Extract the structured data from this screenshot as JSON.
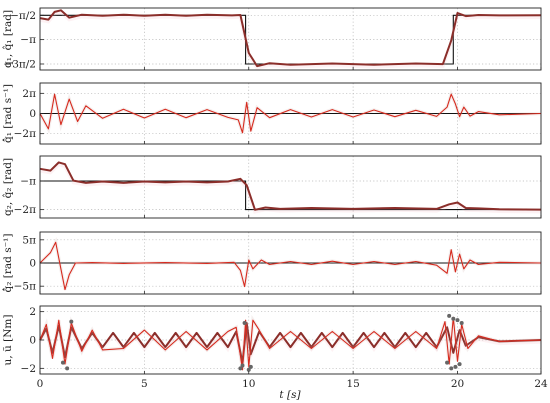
{
  "colors": {
    "reference": "#111111",
    "filtered": "#8b2e2a",
    "measured": "#d62a1e",
    "noise": "#c9a9a0",
    "marker": "#666666",
    "pink": "#f2b8c0",
    "cyan": "#9fd8ec"
  },
  "xlabel": "t [s]",
  "x_ticks": [
    "0",
    "5",
    "10",
    "15",
    "20",
    "24"
  ],
  "chart_data": [
    {
      "type": "line",
      "ylabel": "q₁, q̂₁ [rad]",
      "y_ticks": [
        "−π/2",
        "−π",
        "−3π/2"
      ],
      "ylim": [
        -5.1,
        -1.1
      ],
      "xlim": [
        0,
        24
      ],
      "grid": true,
      "series": [
        {
          "role": "reference",
          "points": [
            [
              0,
              -1.571
            ],
            [
              9.85,
              -1.571
            ],
            [
              9.85,
              -4.712
            ],
            [
              19.8,
              -4.712
            ],
            [
              19.8,
              -1.571
            ],
            [
              24,
              -1.571
            ]
          ]
        },
        {
          "role": "filtered",
          "points": [
            [
              0,
              -1.75
            ],
            [
              0.4,
              -1.85
            ],
            [
              0.7,
              -1.35
            ],
            [
              1.0,
              -1.25
            ],
            [
              1.4,
              -1.72
            ],
            [
              2.0,
              -1.53
            ],
            [
              3.0,
              -1.6
            ],
            [
              4,
              -1.53
            ],
            [
              5,
              -1.6
            ],
            [
              6,
              -1.53
            ],
            [
              7,
              -1.6
            ],
            [
              8,
              -1.53
            ],
            [
              9.2,
              -1.58
            ],
            [
              9.6,
              -1.55
            ],
            [
              10.0,
              -4.0
            ],
            [
              10.4,
              -4.85
            ],
            [
              11,
              -4.66
            ],
            [
              12,
              -4.76
            ],
            [
              14,
              -4.68
            ],
            [
              16,
              -4.76
            ],
            [
              18,
              -4.68
            ],
            [
              19.3,
              -4.72
            ],
            [
              19.7,
              -3.2
            ],
            [
              20.0,
              -1.42
            ],
            [
              20.4,
              -1.62
            ],
            [
              21,
              -1.55
            ],
            [
              22,
              -1.58
            ],
            [
              24,
              -1.57
            ]
          ]
        }
      ]
    },
    {
      "type": "line",
      "ylabel": "q̂̇₁ [rad s⁻¹]",
      "y_ticks": [
        "2π",
        "0",
        "−2π"
      ],
      "ylim": [
        -9.5,
        9.5
      ],
      "xlim": [
        0,
        24
      ],
      "grid": true,
      "series": [
        {
          "role": "reference",
          "points": [
            [
              0,
              0
            ],
            [
              24,
              0
            ]
          ]
        },
        {
          "role": "measured",
          "points": [
            [
              0,
              0
            ],
            [
              0.4,
              -4.8
            ],
            [
              0.7,
              6.0
            ],
            [
              1.0,
              -3.5
            ],
            [
              1.4,
              4.5
            ],
            [
              1.8,
              -2.5
            ],
            [
              2.2,
              2.4
            ],
            [
              3,
              -1.5
            ],
            [
              4,
              1.3
            ],
            [
              5,
              -1.4
            ],
            [
              6,
              1.3
            ],
            [
              7,
              -1.3
            ],
            [
              8,
              1.2
            ],
            [
              9,
              -1.2
            ],
            [
              9.5,
              -2
            ],
            [
              9.7,
              -6
            ],
            [
              9.9,
              3.5
            ],
            [
              10.1,
              -5.5
            ],
            [
              10.4,
              1.8
            ],
            [
              11,
              -1.3
            ],
            [
              12,
              1.2
            ],
            [
              13,
              -1.1
            ],
            [
              14,
              1.2
            ],
            [
              15,
              -1.1
            ],
            [
              16,
              1.1
            ],
            [
              17,
              -1.0
            ],
            [
              18,
              1.0
            ],
            [
              19,
              -0.9
            ],
            [
              19.5,
              2
            ],
            [
              19.7,
              6.0
            ],
            [
              19.9,
              3.0
            ],
            [
              20.1,
              -1.0
            ],
            [
              20.3,
              2.0
            ],
            [
              20.6,
              -0.8
            ],
            [
              21,
              0.6
            ],
            [
              22,
              -0.4
            ],
            [
              24,
              0
            ]
          ]
        }
      ]
    },
    {
      "type": "line",
      "ylabel": "q₂, q̂₂ [rad]",
      "y_ticks": [
        "−π",
        "−2π"
      ],
      "ylim": [
        -7.2,
        -0.4
      ],
      "xlim": [
        0,
        24
      ],
      "grid": true,
      "series": [
        {
          "role": "reference",
          "points": [
            [
              0,
              -3.1416
            ],
            [
              9.85,
              -3.1416
            ],
            [
              9.85,
              -6.2832
            ],
            [
              24,
              -6.2832
            ]
          ]
        },
        {
          "role": "filtered",
          "points": [
            [
              0,
              -1.8
            ],
            [
              0.5,
              -2.0
            ],
            [
              0.9,
              -1.1
            ],
            [
              1.2,
              -1.3
            ],
            [
              1.6,
              -3.1
            ],
            [
              2.2,
              -3.35
            ],
            [
              3.0,
              -3.2
            ],
            [
              4,
              -3.35
            ],
            [
              5,
              -3.2
            ],
            [
              6,
              -3.3
            ],
            [
              7,
              -3.2
            ],
            [
              8,
              -3.3
            ],
            [
              9,
              -3.2
            ],
            [
              9.6,
              -2.9
            ],
            [
              9.9,
              -3.6
            ],
            [
              10.3,
              -6.3
            ],
            [
              10.8,
              -6.05
            ],
            [
              11.5,
              -6.2
            ],
            [
              13,
              -6.1
            ],
            [
              15,
              -6.2
            ],
            [
              17,
              -6.1
            ],
            [
              19,
              -6.2
            ],
            [
              19.6,
              -5.7
            ],
            [
              20.0,
              -5.5
            ],
            [
              20.4,
              -6.1
            ],
            [
              21,
              -6.15
            ],
            [
              22,
              -6.25
            ],
            [
              24,
              -6.28
            ]
          ]
        }
      ]
    },
    {
      "type": "line",
      "ylabel": "q̂̇₂ [rad s⁻¹]",
      "y_ticks": [
        "5π",
        "0",
        "−5π"
      ],
      "ylim": [
        -21,
        21
      ],
      "xlim": [
        0,
        24
      ],
      "grid": true,
      "series": [
        {
          "role": "reference",
          "points": [
            [
              0,
              0
            ],
            [
              24,
              0
            ]
          ]
        },
        {
          "role": "measured",
          "points": [
            [
              0,
              0
            ],
            [
              0.5,
              7
            ],
            [
              0.75,
              14
            ],
            [
              1.0,
              -4
            ],
            [
              1.2,
              -18
            ],
            [
              1.4,
              -8
            ],
            [
              1.7,
              0
            ],
            [
              2.5,
              0.3
            ],
            [
              4,
              -0.3
            ],
            [
              6,
              0.3
            ],
            [
              8,
              -0.3
            ],
            [
              9.3,
              0.5
            ],
            [
              9.6,
              -5
            ],
            [
              9.8,
              -16
            ],
            [
              10.0,
              2
            ],
            [
              10.2,
              -4
            ],
            [
              10.6,
              2
            ],
            [
              11,
              -1
            ],
            [
              12,
              1
            ],
            [
              13,
              -1
            ],
            [
              14,
              1.2
            ],
            [
              15,
              -1
            ],
            [
              16,
              1
            ],
            [
              17,
              -1
            ],
            [
              18,
              1
            ],
            [
              19,
              -1.5
            ],
            [
              19.5,
              -7
            ],
            [
              19.7,
              9
            ],
            [
              19.9,
              -6
            ],
            [
              20.1,
              6
            ],
            [
              20.3,
              -4
            ],
            [
              20.6,
              2
            ],
            [
              21,
              -1
            ],
            [
              22,
              0.5
            ],
            [
              24,
              0
            ]
          ]
        }
      ]
    },
    {
      "type": "line",
      "ylabel": "u, ũ [Nm]",
      "y_ticks": [
        "2",
        "0",
        "−2"
      ],
      "ylim": [
        -2.4,
        2.4
      ],
      "xlim": [
        0,
        24
      ],
      "grid": true,
      "series": [
        {
          "role": "filtered",
          "points": [
            [
              0,
              0
            ],
            [
              0.3,
              0.8
            ],
            [
              0.6,
              -0.9
            ],
            [
              0.9,
              1.0
            ],
            [
              1.2,
              -1.2
            ],
            [
              1.5,
              0.9
            ],
            [
              2,
              -0.6
            ],
            [
              2.5,
              0.5
            ],
            [
              3,
              -0.5
            ],
            [
              3.5,
              0.5
            ],
            [
              4,
              -0.5
            ],
            [
              4.5,
              0.5
            ],
            [
              5,
              -0.5
            ],
            [
              5.5,
              0.5
            ],
            [
              6,
              -0.5
            ],
            [
              6.5,
              0.5
            ],
            [
              7,
              -0.5
            ],
            [
              7.5,
              0.5
            ],
            [
              8,
              -0.5
            ],
            [
              8.5,
              0.5
            ],
            [
              9,
              -0.5
            ],
            [
              9.4,
              0.6
            ],
            [
              9.7,
              -1.6
            ],
            [
              9.9,
              1.2
            ],
            [
              10.1,
              -1.0
            ],
            [
              10.5,
              0.6
            ],
            [
              11,
              -0.5
            ],
            [
              11.5,
              0.5
            ],
            [
              12,
              -0.5
            ],
            [
              12.5,
              0.5
            ],
            [
              13,
              -0.5
            ],
            [
              13.5,
              0.5
            ],
            [
              14,
              -0.5
            ],
            [
              14.5,
              0.5
            ],
            [
              15,
              -0.5
            ],
            [
              15.5,
              0.5
            ],
            [
              16,
              -0.5
            ],
            [
              16.5,
              0.5
            ],
            [
              17,
              -0.5
            ],
            [
              17.5,
              0.5
            ],
            [
              18,
              -0.5
            ],
            [
              18.5,
              0.5
            ],
            [
              19,
              -0.5
            ],
            [
              19.5,
              0.9
            ],
            [
              19.8,
              -0.9
            ],
            [
              20.1,
              0.7
            ],
            [
              20.4,
              -0.4
            ],
            [
              21,
              0.2
            ],
            [
              22,
              -0.1
            ],
            [
              24,
              0
            ]
          ]
        },
        {
          "role": "measured",
          "points": [
            [
              0,
              0
            ],
            [
              0.3,
              1.1
            ],
            [
              0.6,
              -1.3
            ],
            [
              0.9,
              1.4
            ],
            [
              1.2,
              -1.7
            ],
            [
              1.5,
              1.2
            ],
            [
              2,
              -0.8
            ],
            [
              2.5,
              0.7
            ],
            [
              3,
              -0.7
            ],
            [
              4,
              -0.6
            ],
            [
              5,
              0.7
            ],
            [
              6,
              -0.7
            ],
            [
              7,
              0.6
            ],
            [
              8,
              -0.7
            ],
            [
              9,
              0.6
            ],
            [
              9.4,
              0.9
            ],
            [
              9.7,
              -2.1
            ],
            [
              9.85,
              1.4
            ],
            [
              10.0,
              -1.9
            ],
            [
              10.2,
              1.4
            ],
            [
              10.5,
              0.7
            ],
            [
              11,
              -0.6
            ],
            [
              12,
              0.6
            ],
            [
              13,
              -0.6
            ],
            [
              14,
              0.6
            ],
            [
              15,
              -0.6
            ],
            [
              16,
              0.6
            ],
            [
              17,
              -0.6
            ],
            [
              18,
              0.6
            ],
            [
              19,
              -0.6
            ],
            [
              19.4,
              1.3
            ],
            [
              19.6,
              -1.7
            ],
            [
              19.8,
              1.6
            ],
            [
              20.0,
              -1.5
            ],
            [
              20.2,
              1.1
            ],
            [
              20.5,
              -0.6
            ],
            [
              21,
              0.3
            ],
            [
              22,
              -0.1
            ],
            [
              24,
              0
            ]
          ]
        }
      ],
      "markers": [
        [
          1.1,
          -1.6
        ],
        [
          1.3,
          -2.0
        ],
        [
          1.5,
          1.3
        ],
        [
          9.6,
          -2.0
        ],
        [
          9.7,
          -1.8
        ],
        [
          9.8,
          1.2
        ],
        [
          10.0,
          -2.1
        ],
        [
          10.1,
          -1.9
        ],
        [
          19.5,
          -1.6
        ],
        [
          19.6,
          1.7
        ],
        [
          19.7,
          -2.0
        ],
        [
          19.8,
          1.5
        ],
        [
          19.9,
          -1.9
        ],
        [
          20.0,
          1.4
        ],
        [
          20.1,
          -1.7
        ],
        [
          20.2,
          1.2
        ]
      ]
    }
  ]
}
